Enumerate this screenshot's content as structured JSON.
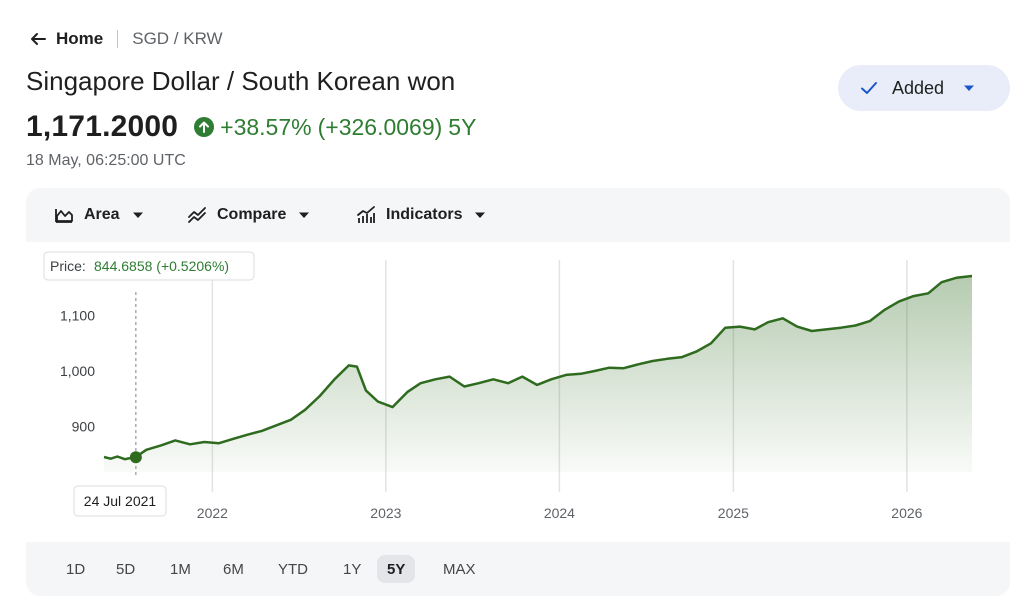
{
  "breadcrumb": {
    "home_label": "Home",
    "pair_label": "SGD / KRW"
  },
  "header": {
    "title": "Singapore Dollar / South Korean won",
    "price": "1,171.2000",
    "change_percent": "+38.57%",
    "change_abs": "(+326.0069)",
    "change_period": "5Y",
    "timestamp": "18 May, 06:25:00 UTC"
  },
  "watch_button": {
    "label": "Added"
  },
  "toolbar": {
    "area_label": "Area",
    "compare_label": "Compare",
    "indicators_label": "Indicators"
  },
  "tooltip": {
    "label": "Price:",
    "value": "844.6858 (+0.5206%)",
    "date_label": "24 Jul 2021",
    "date": "2021-07-24",
    "price": 844.6858
  },
  "ranges": [
    "1D",
    "5D",
    "1M",
    "6M",
    "YTD",
    "1Y",
    "5Y",
    "MAX"
  ],
  "active_range": "5Y",
  "colors": {
    "line": "#2e6b1f",
    "positive": "#2e7d32",
    "accent_button": "#e8edf9"
  },
  "chart_data": {
    "type": "area",
    "title": "",
    "xlabel": "",
    "ylabel": "",
    "y_ticks": [
      900,
      1000,
      1100
    ],
    "y_tick_labels": [
      "900",
      "1,000",
      "1,100"
    ],
    "x_ticks": [
      "2022-01-01",
      "2023-01-01",
      "2024-01-01",
      "2025-01-01",
      "2026-01-01"
    ],
    "x_tick_labels": [
      "2022",
      "2023",
      "2024",
      "2025",
      "2026"
    ],
    "xlim": [
      "2021-05-18",
      "2026-05-18"
    ],
    "ylim": [
      800,
      1200
    ],
    "grid": "vertical",
    "series": [
      {
        "values": [
          [
            "2021-05-18",
            845
          ],
          [
            "2021-06-01",
            842
          ],
          [
            "2021-06-15",
            846
          ],
          [
            "2021-07-01",
            841
          ],
          [
            "2021-07-24",
            845
          ],
          [
            "2021-08-15",
            858
          ],
          [
            "2021-09-15",
            866
          ],
          [
            "2021-10-15",
            875
          ],
          [
            "2021-11-15",
            868
          ],
          [
            "2021-12-15",
            872
          ],
          [
            "2022-01-15",
            870
          ],
          [
            "2022-02-15",
            878
          ],
          [
            "2022-03-15",
            885
          ],
          [
            "2022-04-15",
            892
          ],
          [
            "2022-05-15",
            902
          ],
          [
            "2022-06-15",
            912
          ],
          [
            "2022-07-15",
            930
          ],
          [
            "2022-08-15",
            955
          ],
          [
            "2022-09-15",
            985
          ],
          [
            "2022-10-15",
            1010
          ],
          [
            "2022-11-01",
            1008
          ],
          [
            "2022-11-20",
            965
          ],
          [
            "2022-12-15",
            945
          ],
          [
            "2023-01-15",
            935
          ],
          [
            "2023-02-15",
            962
          ],
          [
            "2023-03-15",
            978
          ],
          [
            "2023-04-15",
            985
          ],
          [
            "2023-05-15",
            990
          ],
          [
            "2023-06-15",
            972
          ],
          [
            "2023-07-15",
            978
          ],
          [
            "2023-08-15",
            985
          ],
          [
            "2023-09-15",
            978
          ],
          [
            "2023-10-15",
            990
          ],
          [
            "2023-11-15",
            975
          ],
          [
            "2023-12-15",
            985
          ],
          [
            "2024-01-15",
            993
          ],
          [
            "2024-02-15",
            995
          ],
          [
            "2024-03-15",
            1000
          ],
          [
            "2024-04-15",
            1006
          ],
          [
            "2024-05-15",
            1005
          ],
          [
            "2024-06-15",
            1012
          ],
          [
            "2024-07-15",
            1018
          ],
          [
            "2024-08-15",
            1022
          ],
          [
            "2024-09-15",
            1025
          ],
          [
            "2024-10-15",
            1035
          ],
          [
            "2024-11-15",
            1050
          ],
          [
            "2024-12-15",
            1078
          ],
          [
            "2025-01-15",
            1080
          ],
          [
            "2025-02-15",
            1075
          ],
          [
            "2025-03-15",
            1088
          ],
          [
            "2025-04-15",
            1095
          ],
          [
            "2025-05-15",
            1080
          ],
          [
            "2025-06-15",
            1072
          ],
          [
            "2025-07-15",
            1075
          ],
          [
            "2025-08-15",
            1078
          ],
          [
            "2025-09-15",
            1082
          ],
          [
            "2025-10-15",
            1090
          ],
          [
            "2025-11-15",
            1110
          ],
          [
            "2025-12-15",
            1125
          ],
          [
            "2026-01-15",
            1135
          ],
          [
            "2026-02-15",
            1140
          ],
          [
            "2026-03-15",
            1160
          ],
          [
            "2026-04-15",
            1168
          ],
          [
            "2026-05-18",
            1171.2
          ]
        ]
      }
    ]
  }
}
